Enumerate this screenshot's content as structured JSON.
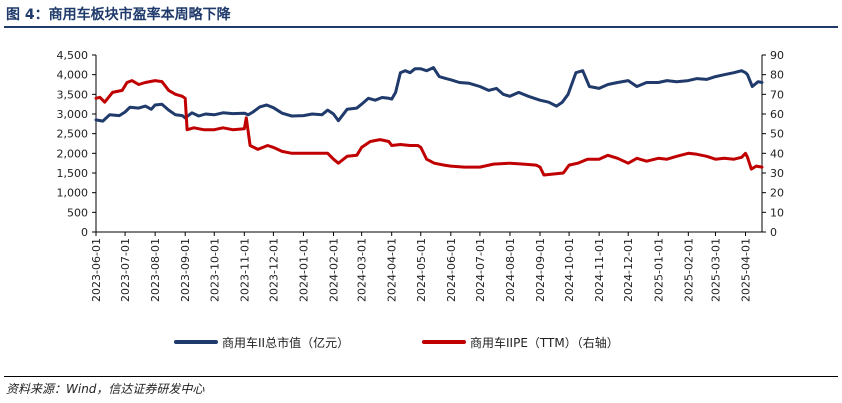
{
  "title": "图 4：商用车板块市盈率本周略下降",
  "source": "资料来源：Wind，信达证券研发中心",
  "colors": {
    "series1": "#1f3a6b",
    "series2": "#c00000"
  },
  "chart_data": {
    "type": "line",
    "x_ticks": [
      "2023-06-01",
      "2023-07-01",
      "2023-08-01",
      "2023-09-01",
      "2023-10-01",
      "2023-11-01",
      "2023-12-01",
      "2024-01-01",
      "2024-02-01",
      "2024-03-01",
      "2024-04-01",
      "2024-05-01",
      "2024-06-01",
      "2024-07-01",
      "2024-08-01",
      "2024-09-01",
      "2024-10-01",
      "2024-11-01",
      "2024-12-01",
      "2025-01-01",
      "2025-02-01",
      "2025-03-01",
      "2025-04-01"
    ],
    "x_range": [
      "2023-06-01",
      "2025-04-18"
    ],
    "y_left": {
      "lim": [
        0,
        4500
      ],
      "ticks": [
        "0",
        "500",
        "1,000",
        "1,500",
        "2,000",
        "2,500",
        "3,000",
        "3,500",
        "4,000",
        "4,500"
      ]
    },
    "y_right": {
      "lim": [
        0,
        90
      ],
      "ticks": [
        "0",
        "10",
        "20",
        "30",
        "40",
        "50",
        "60",
        "70",
        "80",
        "90"
      ]
    },
    "legend_position": "bottom",
    "series": [
      {
        "name": "商用车II总市值（亿元）",
        "axis": "left",
        "color": "#1f3a6b",
        "points": [
          [
            "2023-06-01",
            2850
          ],
          [
            "2023-06-08",
            2820
          ],
          [
            "2023-06-15",
            2980
          ],
          [
            "2023-06-25",
            2960
          ],
          [
            "2023-07-01",
            3050
          ],
          [
            "2023-07-06",
            3170
          ],
          [
            "2023-07-15",
            3150
          ],
          [
            "2023-07-22",
            3200
          ],
          [
            "2023-07-28",
            3120
          ],
          [
            "2023-08-01",
            3230
          ],
          [
            "2023-08-08",
            3250
          ],
          [
            "2023-08-15",
            3100
          ],
          [
            "2023-08-22",
            2980
          ],
          [
            "2023-08-29",
            2960
          ],
          [
            "2023-09-01",
            2900
          ],
          [
            "2023-09-08",
            3030
          ],
          [
            "2023-09-15",
            2950
          ],
          [
            "2023-09-22",
            3000
          ],
          [
            "2023-10-01",
            2980
          ],
          [
            "2023-10-10",
            3030
          ],
          [
            "2023-10-20",
            3010
          ],
          [
            "2023-11-01",
            3020
          ],
          [
            "2023-11-05",
            2980
          ],
          [
            "2023-11-10",
            3050
          ],
          [
            "2023-11-17",
            3180
          ],
          [
            "2023-11-24",
            3230
          ],
          [
            "2023-12-01",
            3160
          ],
          [
            "2023-12-10",
            3020
          ],
          [
            "2023-12-20",
            2950
          ],
          [
            "2024-01-01",
            2960
          ],
          [
            "2024-01-10",
            3000
          ],
          [
            "2024-01-20",
            2980
          ],
          [
            "2024-01-26",
            3100
          ],
          [
            "2024-02-01",
            3000
          ],
          [
            "2024-02-06",
            2830
          ],
          [
            "2024-02-15",
            3120
          ],
          [
            "2024-02-25",
            3150
          ],
          [
            "2024-03-01",
            3250
          ],
          [
            "2024-03-08",
            3400
          ],
          [
            "2024-03-15",
            3350
          ],
          [
            "2024-03-22",
            3420
          ],
          [
            "2024-03-29",
            3400
          ],
          [
            "2024-04-01",
            3380
          ],
          [
            "2024-04-05",
            3550
          ],
          [
            "2024-04-10",
            4050
          ],
          [
            "2024-04-15",
            4100
          ],
          [
            "2024-04-20",
            4050
          ],
          [
            "2024-04-25",
            4150
          ],
          [
            "2024-05-01",
            4150
          ],
          [
            "2024-05-07",
            4100
          ],
          [
            "2024-05-14",
            4180
          ],
          [
            "2024-05-20",
            3950
          ],
          [
            "2024-05-27",
            3900
          ],
          [
            "2024-06-01",
            3870
          ],
          [
            "2024-06-10",
            3800
          ],
          [
            "2024-06-20",
            3780
          ],
          [
            "2024-07-01",
            3700
          ],
          [
            "2024-07-10",
            3600
          ],
          [
            "2024-07-18",
            3650
          ],
          [
            "2024-07-25",
            3500
          ],
          [
            "2024-08-01",
            3450
          ],
          [
            "2024-08-10",
            3550
          ],
          [
            "2024-08-20",
            3450
          ],
          [
            "2024-09-01",
            3350
          ],
          [
            "2024-09-10",
            3300
          ],
          [
            "2024-09-18",
            3200
          ],
          [
            "2024-09-24",
            3300
          ],
          [
            "2024-09-30",
            3500
          ],
          [
            "2024-10-08",
            4050
          ],
          [
            "2024-10-15",
            4100
          ],
          [
            "2024-10-22",
            3700
          ],
          [
            "2024-11-01",
            3650
          ],
          [
            "2024-11-10",
            3750
          ],
          [
            "2024-11-20",
            3800
          ],
          [
            "2024-12-01",
            3850
          ],
          [
            "2024-12-10",
            3700
          ],
          [
            "2024-12-20",
            3800
          ],
          [
            "2025-01-01",
            3800
          ],
          [
            "2025-01-10",
            3850
          ],
          [
            "2025-01-20",
            3820
          ],
          [
            "2025-02-01",
            3850
          ],
          [
            "2025-02-10",
            3900
          ],
          [
            "2025-02-20",
            3880
          ],
          [
            "2025-03-01",
            3950
          ],
          [
            "2025-03-10",
            4000
          ],
          [
            "2025-03-20",
            4050
          ],
          [
            "2025-03-28",
            4100
          ],
          [
            "2025-04-01",
            4050
          ],
          [
            "2025-04-03",
            4000
          ],
          [
            "2025-04-08",
            3700
          ],
          [
            "2025-04-14",
            3820
          ],
          [
            "2025-04-18",
            3800
          ]
        ]
      },
      {
        "name": "商用车IIPE（TTM）（右轴）",
        "axis": "right",
        "color": "#c00000",
        "points": [
          [
            "2023-06-01",
            68
          ],
          [
            "2023-06-05",
            68.5
          ],
          [
            "2023-06-10",
            66
          ],
          [
            "2023-06-18",
            71
          ],
          [
            "2023-06-28",
            72
          ],
          [
            "2023-07-03",
            76
          ],
          [
            "2023-07-08",
            77
          ],
          [
            "2023-07-15",
            75
          ],
          [
            "2023-07-22",
            76
          ],
          [
            "2023-08-01",
            77
          ],
          [
            "2023-08-08",
            76.5
          ],
          [
            "2023-08-15",
            72
          ],
          [
            "2023-08-22",
            70
          ],
          [
            "2023-08-29",
            69
          ],
          [
            "2023-09-01",
            68
          ],
          [
            "2023-09-03",
            52
          ],
          [
            "2023-09-10",
            53
          ],
          [
            "2023-09-20",
            52
          ],
          [
            "2023-10-01",
            52
          ],
          [
            "2023-10-10",
            53
          ],
          [
            "2023-10-20",
            52
          ],
          [
            "2023-11-01",
            52.5
          ],
          [
            "2023-11-03",
            58
          ],
          [
            "2023-11-07",
            44
          ],
          [
            "2023-11-15",
            42
          ],
          [
            "2023-11-25",
            44
          ],
          [
            "2023-12-01",
            43
          ],
          [
            "2023-12-10",
            41
          ],
          [
            "2023-12-20",
            40
          ],
          [
            "2024-01-01",
            40
          ],
          [
            "2024-01-15",
            40
          ],
          [
            "2024-01-26",
            40
          ],
          [
            "2024-02-01",
            37
          ],
          [
            "2024-02-06",
            35
          ],
          [
            "2024-02-15",
            38.5
          ],
          [
            "2024-02-25",
            39
          ],
          [
            "2024-03-01",
            43
          ],
          [
            "2024-03-10",
            46
          ],
          [
            "2024-03-20",
            47
          ],
          [
            "2024-03-29",
            46
          ],
          [
            "2024-04-01",
            44
          ],
          [
            "2024-04-10",
            44.5
          ],
          [
            "2024-04-20",
            44
          ],
          [
            "2024-04-28",
            44
          ],
          [
            "2024-05-01",
            43
          ],
          [
            "2024-05-07",
            37
          ],
          [
            "2024-05-15",
            35
          ],
          [
            "2024-05-25",
            34
          ],
          [
            "2024-06-01",
            33.5
          ],
          [
            "2024-06-15",
            33
          ],
          [
            "2024-07-01",
            33
          ],
          [
            "2024-07-15",
            34.5
          ],
          [
            "2024-08-01",
            35
          ],
          [
            "2024-08-15",
            34.5
          ],
          [
            "2024-08-28",
            34
          ],
          [
            "2024-09-01",
            33
          ],
          [
            "2024-09-05",
            29
          ],
          [
            "2024-09-15",
            29.5
          ],
          [
            "2024-09-25",
            30
          ],
          [
            "2024-10-01",
            34
          ],
          [
            "2024-10-10",
            35
          ],
          [
            "2024-10-20",
            37
          ],
          [
            "2024-11-01",
            37
          ],
          [
            "2024-11-10",
            39
          ],
          [
            "2024-11-20",
            37.5
          ],
          [
            "2024-12-01",
            35
          ],
          [
            "2024-12-10",
            37.5
          ],
          [
            "2024-12-20",
            36
          ],
          [
            "2025-01-01",
            37.5
          ],
          [
            "2025-01-10",
            37
          ],
          [
            "2025-01-20",
            38.5
          ],
          [
            "2025-02-01",
            40
          ],
          [
            "2025-02-10",
            39.5
          ],
          [
            "2025-02-20",
            38.5
          ],
          [
            "2025-03-01",
            37
          ],
          [
            "2025-03-10",
            37.5
          ],
          [
            "2025-03-20",
            37
          ],
          [
            "2025-03-28",
            38
          ],
          [
            "2025-04-01",
            40
          ],
          [
            "2025-04-03",
            38
          ],
          [
            "2025-04-07",
            32
          ],
          [
            "2025-04-12",
            33.5
          ],
          [
            "2025-04-18",
            33
          ]
        ]
      }
    ]
  }
}
